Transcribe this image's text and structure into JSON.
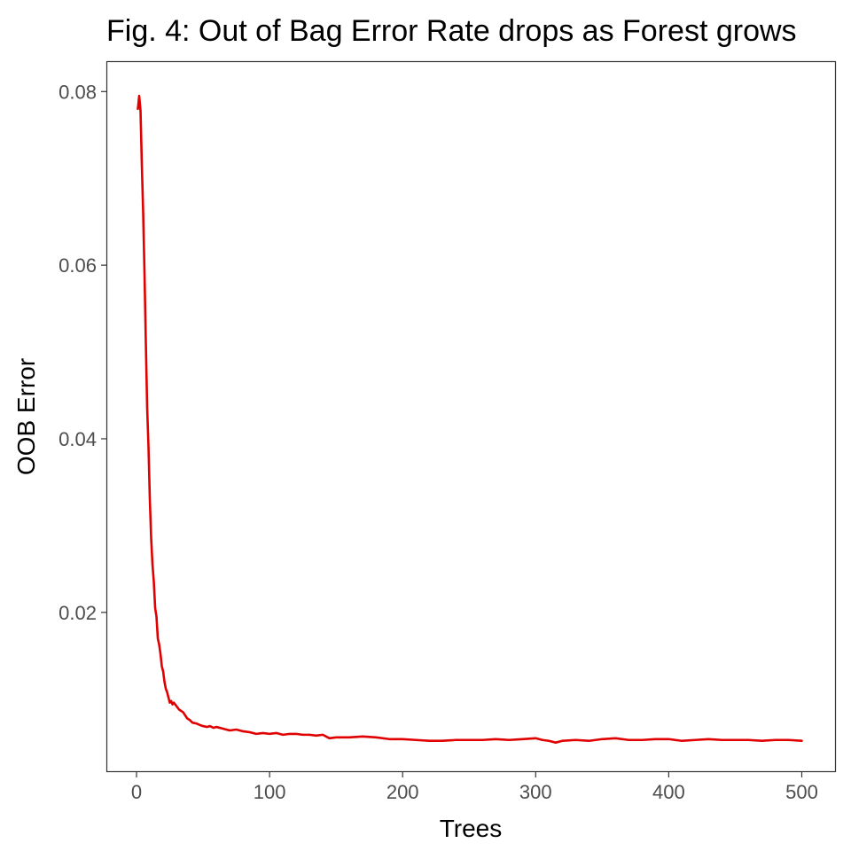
{
  "chart_data": {
    "type": "line",
    "title": "Fig. 4: Out of Bag Error Rate drops as Forest grows",
    "xlabel": "Trees",
    "ylabel": "OOB Error",
    "xlim": [
      -22,
      525
    ],
    "ylim": [
      0.0017,
      0.0834
    ],
    "x_ticks": [
      0,
      100,
      200,
      300,
      400,
      500
    ],
    "x_tick_labels": [
      "0",
      "100",
      "200",
      "300",
      "400",
      "500"
    ],
    "y_ticks": [
      0.02,
      0.04,
      0.06,
      0.08
    ],
    "y_tick_labels": [
      "0.02",
      "0.04",
      "0.06",
      "0.08"
    ],
    "grid": false,
    "legend": "none",
    "series": [
      {
        "color": "#e00000",
        "x": [
          1,
          2,
          3,
          4,
          5,
          6,
          7,
          8,
          9,
          10,
          11,
          12,
          13,
          14,
          15,
          16,
          17,
          18,
          19,
          20,
          21,
          22,
          23,
          24,
          25,
          26,
          27,
          28,
          29,
          30,
          32,
          35,
          38,
          40,
          42,
          45,
          48,
          50,
          53,
          55,
          58,
          60,
          65,
          70,
          75,
          80,
          85,
          90,
          95,
          100,
          105,
          110,
          115,
          120,
          125,
          130,
          135,
          140,
          145,
          150,
          160,
          170,
          180,
          190,
          200,
          210,
          220,
          230,
          240,
          250,
          260,
          270,
          280,
          290,
          300,
          305,
          310,
          315,
          320,
          330,
          340,
          350,
          360,
          370,
          380,
          390,
          400,
          410,
          420,
          430,
          440,
          450,
          460,
          470,
          480,
          490,
          500
        ],
        "y": [
          0.078,
          0.0795,
          0.0778,
          0.0715,
          0.066,
          0.059,
          0.051,
          0.0435,
          0.039,
          0.033,
          0.0285,
          0.0255,
          0.0235,
          0.0205,
          0.0195,
          0.017,
          0.0163,
          0.0152,
          0.0138,
          0.0132,
          0.012,
          0.0112,
          0.0108,
          0.0102,
          0.0096,
          0.0098,
          0.0094,
          0.0096,
          0.0094,
          0.0092,
          0.0088,
          0.0085,
          0.0078,
          0.0076,
          0.0073,
          0.0072,
          0.007,
          0.0069,
          0.0068,
          0.0069,
          0.0067,
          0.0068,
          0.0066,
          0.0064,
          0.0065,
          0.0063,
          0.0062,
          0.006,
          0.0061,
          0.006,
          0.0061,
          0.0059,
          0.006,
          0.006,
          0.0059,
          0.0059,
          0.0058,
          0.0059,
          0.0055,
          0.0056,
          0.0056,
          0.0057,
          0.0056,
          0.0054,
          0.0054,
          0.0053,
          0.0052,
          0.0052,
          0.0053,
          0.0053,
          0.0053,
          0.0054,
          0.0053,
          0.0054,
          0.0055,
          0.0053,
          0.0052,
          0.005,
          0.0052,
          0.0053,
          0.0052,
          0.0054,
          0.0055,
          0.0053,
          0.0053,
          0.0054,
          0.0054,
          0.0052,
          0.0053,
          0.0054,
          0.0053,
          0.0053,
          0.0053,
          0.0052,
          0.0053,
          0.0053,
          0.0052
        ]
      }
    ]
  }
}
